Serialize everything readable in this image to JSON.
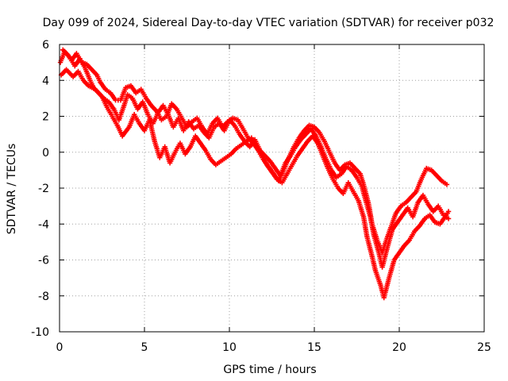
{
  "chart_data": {
    "type": "scatter",
    "title": "Day 099 of 2024, Sidereal Day-to-day VTEC variation (SDTVAR) for receiver p032",
    "xlabel": "GPS time / hours",
    "ylabel": "SDTVAR / TECUs",
    "xlim": [
      0,
      25
    ],
    "ylim": [
      -10,
      6
    ],
    "xticks": [
      0,
      5,
      10,
      15,
      20,
      25
    ],
    "yticks": [
      -10,
      -8,
      -6,
      -4,
      -2,
      0,
      2,
      4,
      6
    ],
    "grid": true,
    "marker": "plus",
    "color": "#ff0000",
    "series": [
      {
        "name": "",
        "x": [
          0.05,
          0.3,
          0.6,
          0.9,
          1.2,
          1.5,
          1.8,
          2.0,
          2.3,
          2.6,
          2.9,
          3.2,
          3.5,
          3.8,
          4.0,
          4.3,
          4.6,
          4.9,
          5.2,
          5.5,
          5.8,
          6.1,
          6.4,
          6.7,
          7.0,
          7.3,
          7.6,
          7.9,
          8.2,
          8.5,
          8.8,
          9.1,
          9.4,
          9.7,
          10.0,
          10.3,
          10.6,
          10.9,
          11.2,
          11.5,
          11.8,
          12.1,
          12.4,
          12.7,
          13.0,
          13.3,
          13.6,
          13.9,
          14.2,
          14.5,
          14.8,
          15.1,
          15.4,
          15.7,
          16.0,
          16.3,
          16.6,
          16.9,
          17.2,
          17.5,
          17.8,
          18.0,
          18.3,
          18.5,
          18.8,
          19.0,
          19.3,
          19.6,
          19.9,
          20.2,
          20.5,
          20.8,
          21.1,
          21.4,
          21.7,
          22.0,
          22.3,
          22.6,
          22.9
        ],
        "y": [
          5.0,
          5.6,
          5.3,
          4.8,
          5.2,
          4.7,
          4.0,
          3.6,
          3.3,
          3.0,
          2.8,
          2.4,
          1.8,
          2.6,
          3.2,
          3.0,
          2.4,
          2.8,
          2.1,
          1.6,
          2.2,
          2.6,
          2.1,
          1.4,
          1.9,
          1.2,
          1.7,
          1.3,
          1.5,
          1.1,
          0.8,
          1.4,
          1.6,
          1.2,
          1.8,
          1.5,
          1.0,
          0.6,
          0.3,
          0.7,
          0.1,
          -0.2,
          -0.5,
          -0.9,
          -1.3,
          -0.6,
          -0.2,
          0.3,
          0.7,
          1.0,
          1.3,
          0.9,
          0.3,
          -0.4,
          -1.0,
          -1.4,
          -1.2,
          -0.8,
          -1.0,
          -1.4,
          -1.9,
          -2.6,
          -3.6,
          -4.6,
          -5.6,
          -6.4,
          -5.3,
          -4.3,
          -3.9,
          -3.5,
          -3.1,
          -3.6,
          -2.8,
          -2.4,
          -2.9,
          -3.3,
          -3.0,
          -3.5,
          -3.7
        ]
      },
      {
        "name": "",
        "x": [
          0.1,
          0.4,
          0.8,
          1.1,
          1.4,
          1.7,
          2.1,
          2.5,
          2.8,
          3.1,
          3.4,
          3.7,
          4.1,
          4.4,
          4.7,
          5.0,
          5.3,
          5.6,
          5.9,
          6.2,
          6.5,
          6.8,
          7.1,
          7.4,
          7.7,
          8.0,
          8.3,
          8.6,
          8.9,
          9.2,
          9.5,
          9.8,
          10.1,
          10.4,
          10.7,
          11.0,
          11.3,
          11.6,
          11.9,
          12.2,
          12.5,
          12.8,
          13.1,
          13.4,
          13.7,
          14.0,
          14.3,
          14.6,
          14.9,
          15.2,
          15.5,
          15.8,
          16.1,
          16.4,
          16.7,
          17.0,
          17.3,
          17.6,
          17.9,
          18.1,
          18.4,
          18.6,
          18.9,
          19.1,
          19.4,
          19.7,
          20.0,
          20.3,
          20.6,
          20.9,
          21.2,
          21.5,
          21.8,
          22.1,
          22.4,
          22.7,
          22.9
        ],
        "y": [
          4.3,
          4.6,
          4.2,
          4.5,
          4.0,
          3.7,
          3.5,
          3.1,
          2.5,
          2.0,
          1.5,
          0.9,
          1.4,
          2.1,
          1.6,
          1.2,
          1.8,
          0.6,
          -0.3,
          0.3,
          -0.6,
          0.0,
          0.5,
          -0.1,
          0.3,
          0.9,
          0.5,
          0.1,
          -0.4,
          -0.7,
          -0.5,
          -0.3,
          -0.1,
          0.2,
          0.4,
          0.6,
          0.8,
          0.3,
          -0.2,
          -0.7,
          -1.1,
          -1.5,
          -1.7,
          -1.2,
          -0.7,
          -0.2,
          0.2,
          0.6,
          0.9,
          0.5,
          -0.2,
          -0.9,
          -1.5,
          -2.0,
          -2.3,
          -1.7,
          -2.2,
          -2.7,
          -3.6,
          -4.7,
          -5.8,
          -6.6,
          -7.4,
          -8.1,
          -7.0,
          -6.0,
          -5.6,
          -5.2,
          -4.9,
          -4.4,
          -4.1,
          -3.7,
          -3.5,
          -3.9,
          -4.0,
          -3.6,
          -3.3
        ]
      },
      {
        "name": "",
        "x": [
          0.2,
          0.5,
          0.7,
          1.0,
          1.3,
          1.6,
          1.9,
          2.2,
          2.4,
          2.7,
          3.0,
          3.3,
          3.6,
          3.9,
          4.2,
          4.5,
          4.8,
          5.1,
          5.4,
          5.7,
          6.0,
          6.3,
          6.6,
          6.9,
          7.2,
          7.5,
          7.8,
          8.1,
          8.4,
          8.7,
          9.0,
          9.3,
          9.6,
          9.9,
          10.2,
          10.5,
          10.8,
          11.1,
          11.4,
          11.7,
          12.0,
          12.3,
          12.6,
          12.9,
          13.2,
          13.5,
          13.8,
          14.1,
          14.4,
          14.7,
          15.0,
          15.3,
          15.6,
          15.9,
          16.2,
          16.5,
          16.8,
          17.1,
          17.4,
          17.7,
          17.9,
          18.2,
          18.4,
          18.7,
          19.0,
          19.2,
          19.5,
          19.8,
          20.1,
          20.4,
          20.7,
          21.0,
          21.3,
          21.6,
          21.9,
          22.2,
          22.5,
          22.8
        ],
        "y": [
          5.7,
          5.4,
          5.1,
          5.5,
          5.0,
          4.9,
          4.6,
          4.3,
          3.9,
          3.5,
          3.3,
          2.9,
          2.9,
          3.6,
          3.7,
          3.3,
          3.5,
          3.0,
          2.6,
          2.3,
          1.8,
          2.0,
          2.7,
          2.4,
          1.9,
          1.4,
          1.7,
          1.9,
          1.4,
          1.0,
          1.6,
          1.9,
          1.4,
          1.7,
          1.9,
          1.8,
          1.3,
          0.8,
          0.5,
          0.1,
          -0.4,
          -0.8,
          -1.2,
          -1.6,
          -1.0,
          -0.3,
          0.3,
          0.8,
          1.2,
          1.5,
          1.4,
          1.1,
          0.6,
          0.0,
          -0.6,
          -1.0,
          -0.7,
          -0.6,
          -0.9,
          -1.2,
          -1.8,
          -2.9,
          -4.0,
          -4.9,
          -5.6,
          -5.0,
          -4.2,
          -3.4,
          -3.0,
          -2.8,
          -2.5,
          -2.2,
          -1.5,
          -0.9,
          -1.0,
          -1.3,
          -1.6,
          -1.8
        ]
      }
    ]
  }
}
